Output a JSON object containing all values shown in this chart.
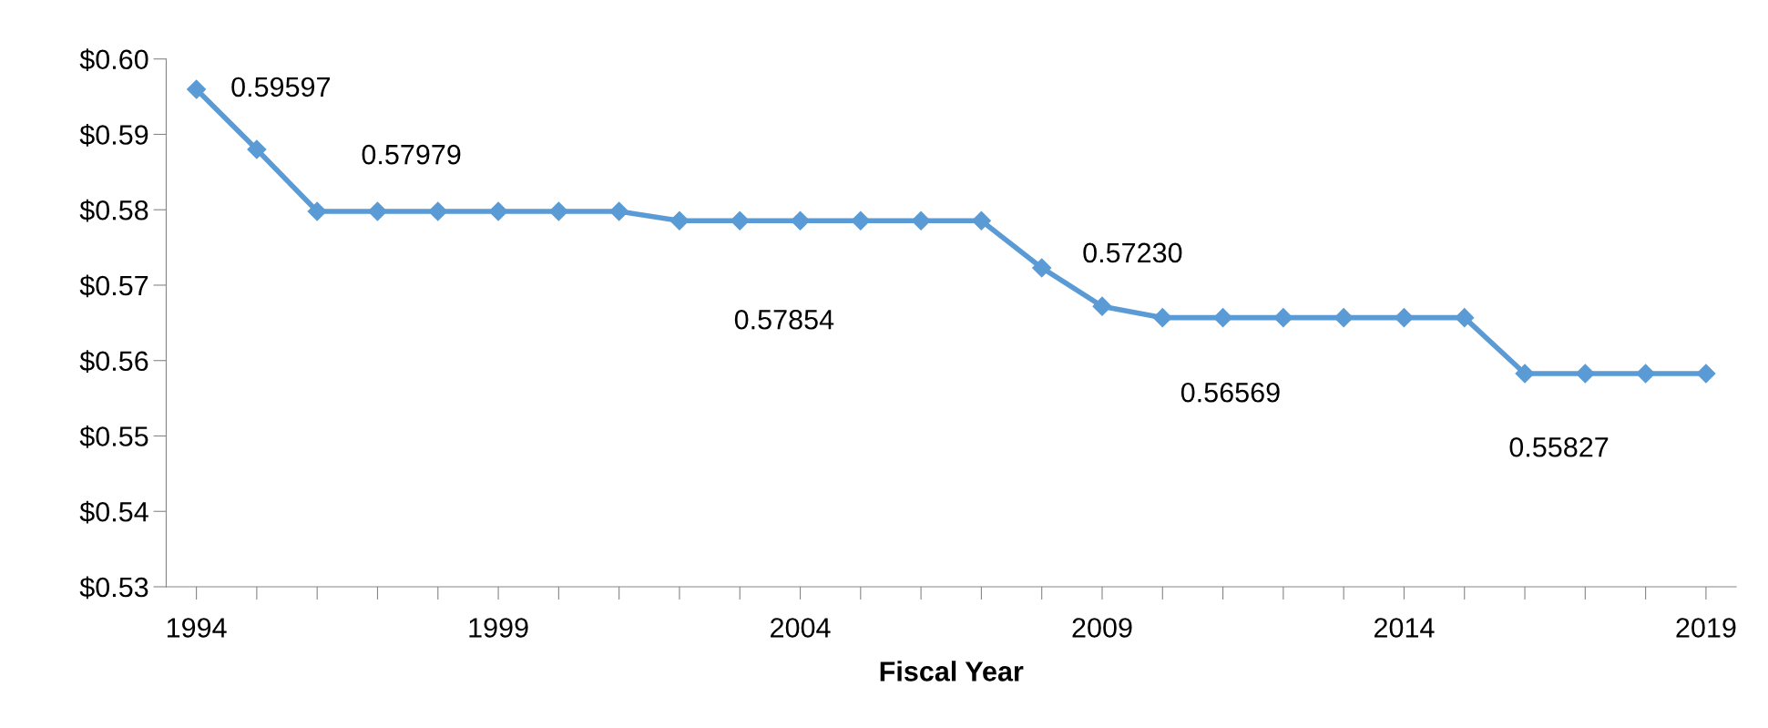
{
  "chart_data": {
    "type": "line",
    "xlabel": "Fiscal Year",
    "categories": [
      "1994",
      null,
      null,
      null,
      null,
      "1999",
      null,
      null,
      null,
      null,
      "2004",
      null,
      null,
      null,
      null,
      "2009",
      null,
      null,
      null,
      null,
      "2014",
      null,
      null,
      null,
      null,
      "2019"
    ],
    "series": [
      {
        "color": "#5b9bd5",
        "values": [
          0.59597,
          0.588,
          0.57979,
          0.57979,
          0.57979,
          0.57979,
          0.57979,
          0.57979,
          0.57854,
          0.57854,
          0.57854,
          0.57854,
          0.57854,
          0.57854,
          0.5723,
          0.5672,
          0.56569,
          0.56569,
          0.56569,
          0.56569,
          0.56569,
          0.56569,
          0.55827,
          0.55827,
          0.55827,
          0.55827
        ],
        "value_labels": [
          "0.59597",
          null,
          null,
          null,
          "0.57979",
          null,
          null,
          null,
          null,
          "0.57854",
          null,
          null,
          null,
          null,
          "0.57230",
          null,
          null,
          "0.56569",
          null,
          null,
          null,
          null,
          "0.55827",
          null,
          null,
          null
        ]
      }
    ],
    "ylim": [
      0.53,
      0.6
    ],
    "yticks": [
      {
        "value": 0.53,
        "label": "$0.53"
      },
      {
        "value": 0.54,
        "label": "$0.54"
      },
      {
        "value": 0.55,
        "label": "$0.55"
      },
      {
        "value": 0.56,
        "label": "$0.56"
      },
      {
        "value": 0.57,
        "label": "$0.57"
      },
      {
        "value": 0.58,
        "label": "$0.58"
      },
      {
        "value": 0.59,
        "label": "$0.59"
      },
      {
        "value": 0.6,
        "label": "$0.60"
      }
    ],
    "grid": false,
    "marker": "diamond",
    "line_style": "solid"
  }
}
